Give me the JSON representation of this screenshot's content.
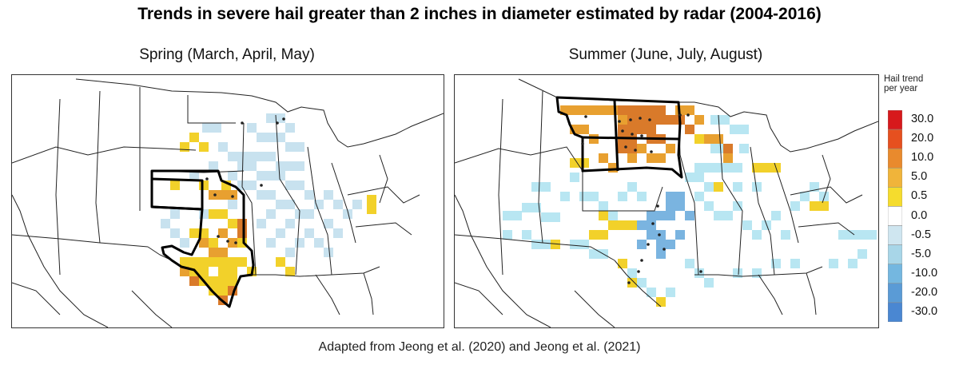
{
  "title": "Trends in severe hail greater than 2 inches in diameter estimated by radar (2004-2016)",
  "panels": {
    "spring": {
      "title": "Spring (March, April, May)"
    },
    "summer": {
      "title": "Summer (June, July, August)"
    }
  },
  "legend": {
    "title_line1": "Hail trend",
    "title_line2": "per year",
    "labels": [
      "30.0",
      "20.0",
      "10.0",
      "5.0",
      "0.5",
      "0.0",
      "-0.5",
      "-5.0",
      "-10.0",
      "-20.0",
      "-30.0"
    ],
    "colors": [
      "#d7191c",
      "#e6501f",
      "#e98a2d",
      "#f0b43a",
      "#f5dc2d",
      "#ffffff",
      "#cfe6f0",
      "#a8d6e8",
      "#74b7e0",
      "#5a9bd6",
      "#4a87d2"
    ]
  },
  "colors": {
    "yellow": "#f2d12a",
    "orange": "#e8a030",
    "dark_orange": "#d97a2a",
    "light_blue": "#c8e2ef",
    "cyan": "#b8e6f2",
    "blue": "#7ab4e0"
  },
  "caption": "Adapted from Jeong et al. (2020) and Jeong et al. (2021)"
}
